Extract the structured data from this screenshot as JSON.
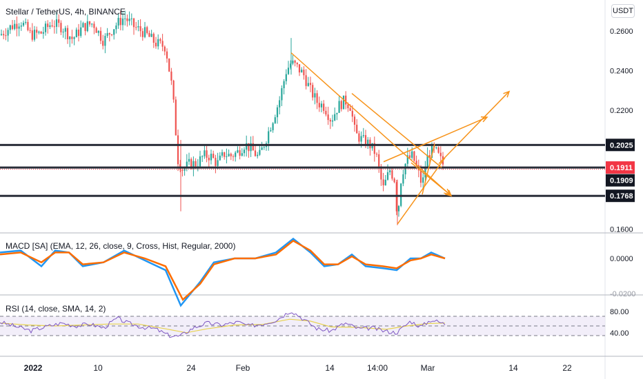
{
  "header": {
    "symbol": "Stellar / TetherUS, 4h, BINANCE",
    "currency_button": "USDT"
  },
  "colors": {
    "up": "#26a69a",
    "down": "#ef5350",
    "trendline": "#f7931a",
    "level_line": "#2a2e39",
    "price_label_bg": "#131722",
    "last_price_bg": "#f23645",
    "macd_line": "#2196f3",
    "signal_line": "#ff6d00",
    "rsi_line": "#7e57c2",
    "rsi_ma": "#e8d34f",
    "rsi_band": "#ede7f6"
  },
  "price_axis": {
    "ticks": [
      "0.2600",
      "0.2400",
      "0.2200",
      "0.1600"
    ],
    "tick_values": [
      0.26,
      0.24,
      0.22,
      0.16
    ],
    "level_labels": [
      {
        "text": "0.2025",
        "value": 0.2025,
        "style": "dark"
      },
      {
        "text": "0.1911",
        "value": 0.1911,
        "style": "red"
      },
      {
        "text": "0.1909",
        "value": 0.1909,
        "style": "dark"
      },
      {
        "text": "0.1768",
        "value": 0.1768,
        "style": "dark"
      }
    ]
  },
  "x_axis": {
    "ticks": [
      "2022",
      "10",
      "24",
      "Feb",
      "14",
      "14:00",
      "Mar",
      "14",
      "22"
    ]
  },
  "macd": {
    "label": "MACD [SA] (EMA, 12, 26, close, 9, Cross, Hist, Regular, 2000)",
    "axis_ticks": [
      "0.0000",
      "-0.0200"
    ]
  },
  "rsi": {
    "label": "RSI (14, close, SMA, 14, 2)",
    "axis_ticks": [
      "80.00",
      "40.00"
    ]
  },
  "chart_data": {
    "type": "candlestick",
    "symbol": "Stellar / TetherUS",
    "interval": "4h",
    "exchange": "BINANCE",
    "ylim": [
      0.155,
      0.268
    ],
    "x_tick_labels": [
      "2022",
      "10",
      "24",
      "Feb",
      "14",
      "14:00",
      "Mar",
      "14",
      "22"
    ],
    "price_series": [
      {
        "x": 0,
        "price": 0.258
      },
      {
        "x": 15,
        "price": 0.262
      },
      {
        "x": 30,
        "price": 0.265
      },
      {
        "x": 45,
        "price": 0.258
      },
      {
        "x": 60,
        "price": 0.259
      },
      {
        "x": 75,
        "price": 0.264
      },
      {
        "x": 90,
        "price": 0.262
      },
      {
        "x": 105,
        "price": 0.256
      },
      {
        "x": 120,
        "price": 0.262
      },
      {
        "x": 135,
        "price": 0.264
      },
      {
        "x": 150,
        "price": 0.255
      },
      {
        "x": 165,
        "price": 0.262
      },
      {
        "x": 180,
        "price": 0.267
      },
      {
        "x": 195,
        "price": 0.262
      },
      {
        "x": 210,
        "price": 0.259
      },
      {
        "x": 225,
        "price": 0.254
      },
      {
        "x": 240,
        "price": 0.252
      },
      {
        "x": 250,
        "price": 0.23
      },
      {
        "x": 258,
        "price": 0.195
      },
      {
        "x": 265,
        "price": 0.19
      },
      {
        "x": 275,
        "price": 0.193
      },
      {
        "x": 285,
        "price": 0.193
      },
      {
        "x": 295,
        "price": 0.197
      },
      {
        "x": 305,
        "price": 0.197
      },
      {
        "x": 315,
        "price": 0.193
      },
      {
        "x": 325,
        "price": 0.198
      },
      {
        "x": 335,
        "price": 0.197
      },
      {
        "x": 345,
        "price": 0.199
      },
      {
        "x": 355,
        "price": 0.203
      },
      {
        "x": 365,
        "price": 0.2
      },
      {
        "x": 375,
        "price": 0.196
      },
      {
        "x": 385,
        "price": 0.205
      },
      {
        "x": 395,
        "price": 0.215
      },
      {
        "x": 405,
        "price": 0.225
      },
      {
        "x": 415,
        "price": 0.24
      },
      {
        "x": 422,
        "price": 0.244
      },
      {
        "x": 430,
        "price": 0.242
      },
      {
        "x": 440,
        "price": 0.238
      },
      {
        "x": 450,
        "price": 0.23
      },
      {
        "x": 460,
        "price": 0.224
      },
      {
        "x": 470,
        "price": 0.222
      },
      {
        "x": 480,
        "price": 0.215
      },
      {
        "x": 490,
        "price": 0.222
      },
      {
        "x": 500,
        "price": 0.225
      },
      {
        "x": 508,
        "price": 0.222
      },
      {
        "x": 515,
        "price": 0.208
      },
      {
        "x": 525,
        "price": 0.205
      },
      {
        "x": 535,
        "price": 0.203
      },
      {
        "x": 545,
        "price": 0.198
      },
      {
        "x": 555,
        "price": 0.18
      },
      {
        "x": 565,
        "price": 0.19
      },
      {
        "x": 572,
        "price": 0.185
      },
      {
        "x": 576,
        "price": 0.165
      },
      {
        "x": 582,
        "price": 0.188
      },
      {
        "x": 590,
        "price": 0.195
      },
      {
        "x": 598,
        "price": 0.197
      },
      {
        "x": 605,
        "price": 0.19
      },
      {
        "x": 612,
        "price": 0.182
      },
      {
        "x": 618,
        "price": 0.195
      },
      {
        "x": 625,
        "price": 0.2
      },
      {
        "x": 632,
        "price": 0.199
      },
      {
        "x": 640,
        "price": 0.194
      },
      {
        "x": 645,
        "price": 0.191
      }
    ],
    "horizontal_levels": [
      0.2025,
      0.1911,
      0.1768
    ],
    "last_price": 0.1911,
    "annotations": [
      {
        "type": "trendline",
        "from": {
          "x": 422,
          "price": 0.249
        },
        "to": {
          "x": 654,
          "price": 0.1768
        }
      },
      {
        "type": "trendline",
        "from": {
          "x": 510,
          "price": 0.2285
        },
        "to": {
          "x": 640,
          "price": 0.1911
        }
      },
      {
        "type": "trendline",
        "from": {
          "x": 556,
          "price": 0.194
        },
        "to": {
          "x": 706,
          "price": 0.2165
        }
      },
      {
        "type": "trendline",
        "from": {
          "x": 576,
          "price": 0.1625
        },
        "to": {
          "x": 645,
          "price": 0.196
        }
      },
      {
        "type": "trendline",
        "from": {
          "x": 596,
          "price": 0.1935
        },
        "to": {
          "x": 652,
          "price": 0.1775
        }
      },
      {
        "type": "trendline",
        "from": {
          "x": 612,
          "price": 0.1775
        },
        "to": {
          "x": 630,
          "price": 0.203
        }
      },
      {
        "type": "arrow",
        "from": {
          "x": 636,
          "price": 0.193
        },
        "to": {
          "x": 738,
          "price": 0.2295
        }
      }
    ],
    "macd": {
      "ylim": [
        -0.026,
        0.011
      ],
      "macd": [
        {
          "x": 0,
          "v": 0.003
        },
        {
          "x": 30,
          "v": 0.004
        },
        {
          "x": 60,
          "v": -0.004
        },
        {
          "x": 80,
          "v": 0.004
        },
        {
          "x": 100,
          "v": 0.003
        },
        {
          "x": 120,
          "v": -0.004
        },
        {
          "x": 150,
          "v": -0.002
        },
        {
          "x": 180,
          "v": 0.004
        },
        {
          "x": 210,
          "v": -0.001
        },
        {
          "x": 240,
          "v": -0.006
        },
        {
          "x": 262,
          "v": -0.024
        },
        {
          "x": 290,
          "v": -0.012
        },
        {
          "x": 310,
          "v": -0.002
        },
        {
          "x": 340,
          "v": 0.0
        },
        {
          "x": 370,
          "v": 0.0
        },
        {
          "x": 400,
          "v": 0.003
        },
        {
          "x": 425,
          "v": 0.01
        },
        {
          "x": 450,
          "v": 0.003
        },
        {
          "x": 470,
          "v": -0.004
        },
        {
          "x": 490,
          "v": -0.003
        },
        {
          "x": 510,
          "v": 0.002
        },
        {
          "x": 530,
          "v": -0.004
        },
        {
          "x": 555,
          "v": -0.005
        },
        {
          "x": 575,
          "v": -0.006
        },
        {
          "x": 595,
          "v": 0.0
        },
        {
          "x": 610,
          "v": 0.0
        },
        {
          "x": 625,
          "v": 0.003
        },
        {
          "x": 645,
          "v": 0.0
        }
      ],
      "signal": [
        {
          "x": 0,
          "v": 0.002
        },
        {
          "x": 30,
          "v": 0.003
        },
        {
          "x": 60,
          "v": -0.002
        },
        {
          "x": 80,
          "v": 0.003
        },
        {
          "x": 100,
          "v": 0.003
        },
        {
          "x": 120,
          "v": -0.003
        },
        {
          "x": 150,
          "v": -0.002
        },
        {
          "x": 180,
          "v": 0.003
        },
        {
          "x": 210,
          "v": 0.0
        },
        {
          "x": 240,
          "v": -0.004
        },
        {
          "x": 265,
          "v": -0.021
        },
        {
          "x": 290,
          "v": -0.013
        },
        {
          "x": 310,
          "v": -0.003
        },
        {
          "x": 340,
          "v": 0.0
        },
        {
          "x": 370,
          "v": 0.0
        },
        {
          "x": 400,
          "v": 0.002
        },
        {
          "x": 425,
          "v": 0.009
        },
        {
          "x": 450,
          "v": 0.004
        },
        {
          "x": 470,
          "v": -0.003
        },
        {
          "x": 490,
          "v": -0.003
        },
        {
          "x": 510,
          "v": 0.001
        },
        {
          "x": 530,
          "v": -0.003
        },
        {
          "x": 555,
          "v": -0.004
        },
        {
          "x": 575,
          "v": -0.005
        },
        {
          "x": 595,
          "v": -0.001
        },
        {
          "x": 610,
          "v": 0.0
        },
        {
          "x": 625,
          "v": 0.002
        },
        {
          "x": 645,
          "v": 0.0
        }
      ]
    },
    "rsi": {
      "ylim": [
        20,
        90
      ],
      "bands": [
        70,
        50,
        30
      ],
      "rsi": [
        {
          "x": 0,
          "v": 58
        },
        {
          "x": 25,
          "v": 48
        },
        {
          "x": 45,
          "v": 40
        },
        {
          "x": 65,
          "v": 48
        },
        {
          "x": 90,
          "v": 56
        },
        {
          "x": 110,
          "v": 50
        },
        {
          "x": 130,
          "v": 54
        },
        {
          "x": 150,
          "v": 46
        },
        {
          "x": 170,
          "v": 66
        },
        {
          "x": 185,
          "v": 56
        },
        {
          "x": 205,
          "v": 48
        },
        {
          "x": 225,
          "v": 44
        },
        {
          "x": 245,
          "v": 30
        },
        {
          "x": 260,
          "v": 28
        },
        {
          "x": 280,
          "v": 46
        },
        {
          "x": 300,
          "v": 56
        },
        {
          "x": 320,
          "v": 52
        },
        {
          "x": 345,
          "v": 58
        },
        {
          "x": 360,
          "v": 50
        },
        {
          "x": 380,
          "v": 54
        },
        {
          "x": 400,
          "v": 62
        },
        {
          "x": 422,
          "v": 82
        },
        {
          "x": 440,
          "v": 64
        },
        {
          "x": 460,
          "v": 44
        },
        {
          "x": 480,
          "v": 40
        },
        {
          "x": 500,
          "v": 56
        },
        {
          "x": 520,
          "v": 44
        },
        {
          "x": 540,
          "v": 46
        },
        {
          "x": 555,
          "v": 40
        },
        {
          "x": 575,
          "v": 36
        },
        {
          "x": 595,
          "v": 60
        },
        {
          "x": 610,
          "v": 48
        },
        {
          "x": 625,
          "v": 63
        },
        {
          "x": 645,
          "v": 54
        }
      ],
      "ma": [
        {
          "x": 0,
          "v": 56
        },
        {
          "x": 40,
          "v": 52
        },
        {
          "x": 80,
          "v": 50
        },
        {
          "x": 120,
          "v": 52
        },
        {
          "x": 160,
          "v": 54
        },
        {
          "x": 200,
          "v": 54
        },
        {
          "x": 240,
          "v": 44
        },
        {
          "x": 270,
          "v": 36
        },
        {
          "x": 300,
          "v": 44
        },
        {
          "x": 340,
          "v": 52
        },
        {
          "x": 380,
          "v": 53
        },
        {
          "x": 420,
          "v": 64
        },
        {
          "x": 450,
          "v": 60
        },
        {
          "x": 480,
          "v": 48
        },
        {
          "x": 520,
          "v": 47
        },
        {
          "x": 560,
          "v": 43
        },
        {
          "x": 590,
          "v": 50
        },
        {
          "x": 620,
          "v": 55
        },
        {
          "x": 645,
          "v": 56
        }
      ]
    }
  }
}
